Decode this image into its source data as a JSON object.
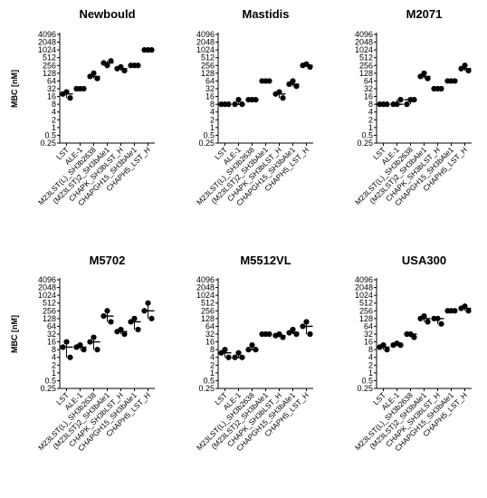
{
  "chart_data": {
    "type": "scatter",
    "yscale": "log2",
    "ylim": [
      0.25,
      4096
    ],
    "yticks": [
      "0.25",
      "0.5",
      "1",
      "2",
      "4",
      "8",
      "16",
      "32",
      "64",
      "128",
      "256",
      "512",
      "1024",
      "2048",
      "4096"
    ],
    "ylabel": "MBC [nM]",
    "categories": [
      "LST",
      "ALE-1",
      "M23LST(L)_SH3b2638",
      "(M23LST)2_SH3bAle1",
      "CHAPK_SH3bLST_H",
      "CHAPGH15_SH3bAle1",
      "CHAPH5_LST_H"
    ],
    "panels": [
      {
        "title": "Newbould",
        "ylabel": "MBC [nM]",
        "ylim": [
          0.25,
          4096
        ],
        "points": [
          [
            20,
            14,
            24
          ],
          [
            32,
            32,
            32
          ],
          [
            96,
            80,
            128
          ],
          [
            320,
            384,
            256
          ],
          [
            192,
            160,
            224
          ],
          [
            256,
            256,
            256
          ],
          [
            1024,
            1024,
            1024
          ]
        ]
      },
      {
        "title": "Mastidis",
        "ylabel": "",
        "ylim": [
          0.25,
          4096
        ],
        "points": [
          [
            8,
            8,
            8
          ],
          [
            8,
            8,
            12
          ],
          [
            12,
            12,
            12
          ],
          [
            64,
            64,
            64
          ],
          [
            20,
            14,
            24
          ],
          [
            48,
            40,
            64
          ],
          [
            256,
            224,
            288
          ]
        ]
      },
      {
        "title": "M2071",
        "ylabel": "",
        "ylim": [
          0.25,
          4096
        ],
        "points": [
          [
            8,
            8,
            8
          ],
          [
            8,
            12,
            8
          ],
          [
            8,
            12,
            12
          ],
          [
            96,
            80,
            128
          ],
          [
            32,
            32,
            32
          ],
          [
            64,
            64,
            64
          ],
          [
            192,
            160,
            256
          ]
        ]
      },
      {
        "title": "M5702",
        "ylabel": "MBC [nM]",
        "ylim": [
          0.25,
          4096
        ],
        "points": [
          [
            10,
            4,
            16
          ],
          [
            10,
            8,
            12
          ],
          [
            16,
            8,
            24
          ],
          [
            160,
            96,
            256
          ],
          [
            40,
            32,
            48
          ],
          [
            96,
            48,
            128
          ],
          [
            256,
            128,
            512
          ]
        ]
      },
      {
        "title": "M5512VL",
        "ylabel": "",
        "ylim": [
          0.25,
          4096
        ],
        "points": [
          [
            6,
            4,
            8
          ],
          [
            4,
            4,
            6
          ],
          [
            8,
            8,
            12
          ],
          [
            32,
            32,
            32
          ],
          [
            28,
            24,
            32
          ],
          [
            36,
            32,
            48
          ],
          [
            64,
            32,
            96
          ]
        ]
      },
      {
        "title": "USA300",
        "ylabel": "",
        "ylim": [
          0.25,
          4096
        ],
        "points": [
          [
            10,
            8,
            12
          ],
          [
            12,
            12,
            14
          ],
          [
            32,
            24,
            32
          ],
          [
            128,
            96,
            160
          ],
          [
            128,
            80,
            128
          ],
          [
            256,
            256,
            256
          ],
          [
            320,
            256,
            384
          ]
        ]
      }
    ]
  }
}
